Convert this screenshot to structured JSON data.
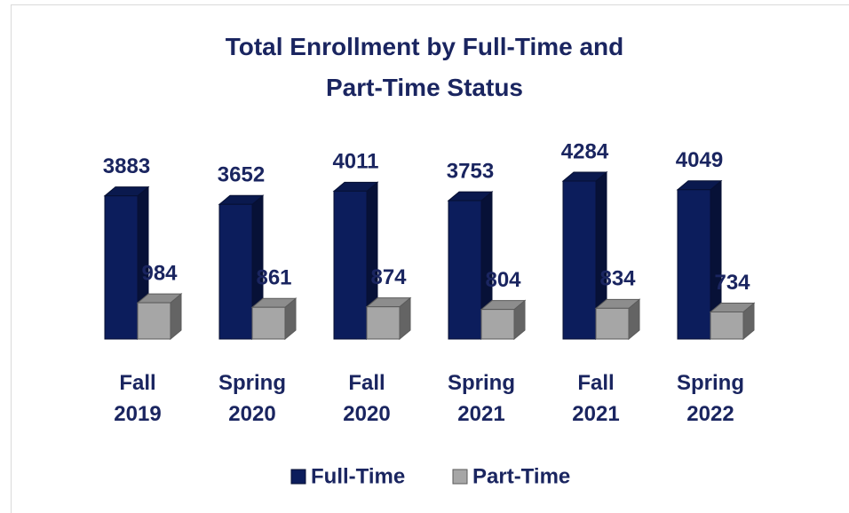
{
  "chart_data": {
    "type": "bar3d",
    "title": "Total Enrollment by Full-Time and Part-Time Status",
    "categories": [
      "Fall 2019",
      "Spring 2020",
      "Fall 2020",
      "Spring 2021",
      "Fall 2021",
      "Spring 2022"
    ],
    "series": [
      {
        "name": "Full-Time",
        "color": "#0c1d5c",
        "values": [
          3883,
          3652,
          4011,
          3753,
          4284,
          4049
        ]
      },
      {
        "name": "Part-Time",
        "color": "#a6a6a6",
        "values": [
          984,
          861,
          874,
          804,
          834,
          734
        ]
      }
    ],
    "legend": "bottom"
  }
}
